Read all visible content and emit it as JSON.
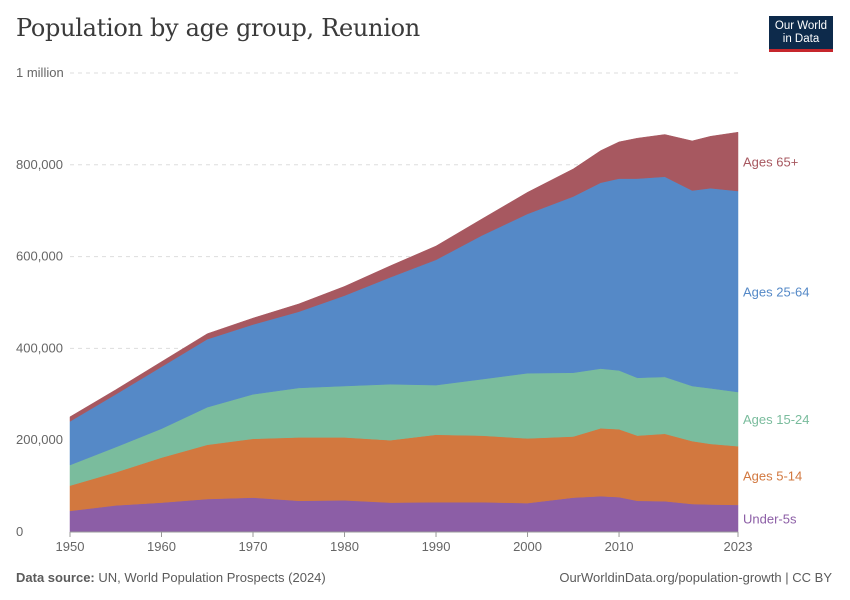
{
  "header": {
    "title": "Population by age group, Reunion",
    "logo_line1": "Our World",
    "logo_line2": "in Data"
  },
  "footer": {
    "source_label": "Data source:",
    "source_text": "UN, World Population Prospects (2024)",
    "url": "OurWorldinData.org/population-growth | CC BY"
  },
  "chart_data": {
    "type": "area",
    "stacked": true,
    "title": "Population by age group, Reunion",
    "x": [
      1950,
      1955,
      1960,
      1965,
      1970,
      1975,
      1980,
      1985,
      1990,
      1995,
      2000,
      2005,
      2008,
      2010,
      2012,
      2015,
      2018,
      2020,
      2023
    ],
    "ylim": [
      0,
      1000000
    ],
    "y_ticks": [
      0,
      200000,
      400000,
      600000,
      800000,
      1000000
    ],
    "y_tick_labels": [
      "0",
      "200,000",
      "400,000",
      "600,000",
      "800,000",
      "1 million"
    ],
    "x_ticks": [
      1950,
      1960,
      1970,
      1980,
      1990,
      2000,
      2010,
      2023
    ],
    "x_tick_labels": [
      "1950",
      "1960",
      "1970",
      "1980",
      "1990",
      "2000",
      "2010",
      "2023"
    ],
    "grid": "horizontal dashed",
    "legend": "right, inline labels",
    "series": [
      {
        "name": "Under-5s",
        "color": "#8c5ea6",
        "values": [
          46000,
          58000,
          64000,
          72000,
          75000,
          68000,
          69000,
          64000,
          65000,
          65000,
          63000,
          75000,
          78000,
          76000,
          68000,
          67000,
          61000,
          60000,
          59000
        ]
      },
      {
        "name": "Ages 5-14",
        "color": "#d2783f",
        "values": [
          55000,
          72000,
          98000,
          118000,
          128000,
          138000,
          137000,
          136000,
          147000,
          145000,
          141000,
          133000,
          148000,
          148000,
          142000,
          147000,
          137000,
          132000,
          128000
        ]
      },
      {
        "name": "Ages 15-24",
        "color": "#7abc9d",
        "values": [
          45000,
          55000,
          63000,
          82000,
          97000,
          108000,
          112000,
          122000,
          108000,
          123000,
          142000,
          139000,
          130000,
          128000,
          126000,
          124000,
          120000,
          121000,
          118000
        ]
      },
      {
        "name": "Ages 25-64",
        "color": "#5589c7",
        "values": [
          95000,
          115000,
          135000,
          148000,
          152000,
          166000,
          197000,
          233000,
          273000,
          313000,
          347000,
          384000,
          405000,
          418000,
          434000,
          436000,
          426000,
          436000,
          438000
        ]
      },
      {
        "name": "Ages 65+",
        "color": "#a75860",
        "values": [
          10000,
          10000,
          11000,
          12000,
          14000,
          17000,
          20000,
          25000,
          30000,
          36000,
          47000,
          60000,
          70000,
          80000,
          88000,
          92000,
          108000,
          113000,
          128000
        ]
      }
    ]
  }
}
